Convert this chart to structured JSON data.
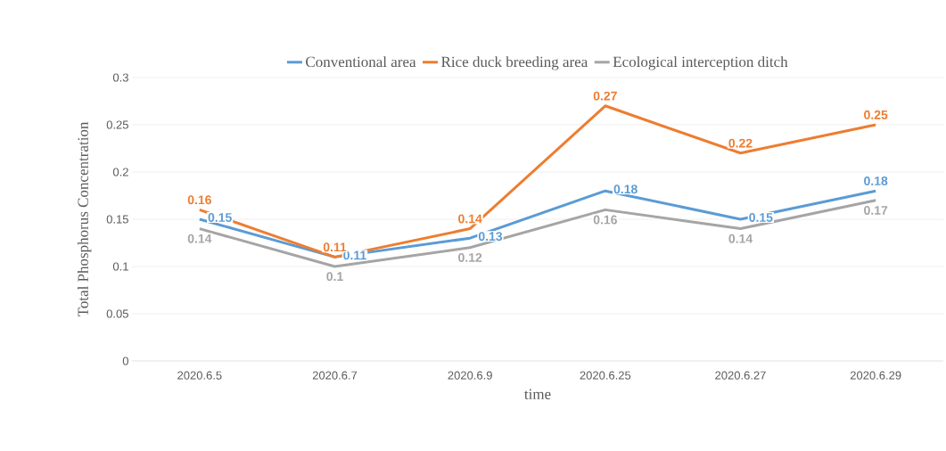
{
  "chart_data": {
    "type": "line",
    "xlabel": "time",
    "ylabel": "Total Phosphorus Concentration",
    "categories": [
      "2020.6.5",
      "2020.6.7",
      "2020.6.9",
      "2020.6.25",
      "2020.6.27",
      "2020.6.29"
    ],
    "series": [
      {
        "name": "Conventional area",
        "color": "#5b9bd5",
        "values": [
          0.15,
          0.11,
          0.13,
          0.18,
          0.15,
          0.18
        ]
      },
      {
        "name": "Rice duck breeding area",
        "color": "#ed7d31",
        "values": [
          0.16,
          0.11,
          0.14,
          0.27,
          0.22,
          0.25
        ]
      },
      {
        "name": "Ecological interception ditch",
        "color": "#a5a5a5",
        "values": [
          0.14,
          0.1,
          0.12,
          0.16,
          0.14,
          0.17
        ]
      }
    ],
    "ylim": [
      0,
      0.3
    ],
    "yticks": [
      0,
      0.05,
      0.1,
      0.15,
      0.2,
      0.25,
      0.3
    ],
    "grid": "y",
    "legend": "top",
    "data_labels": true,
    "marker": "none",
    "line_style": "solid"
  }
}
